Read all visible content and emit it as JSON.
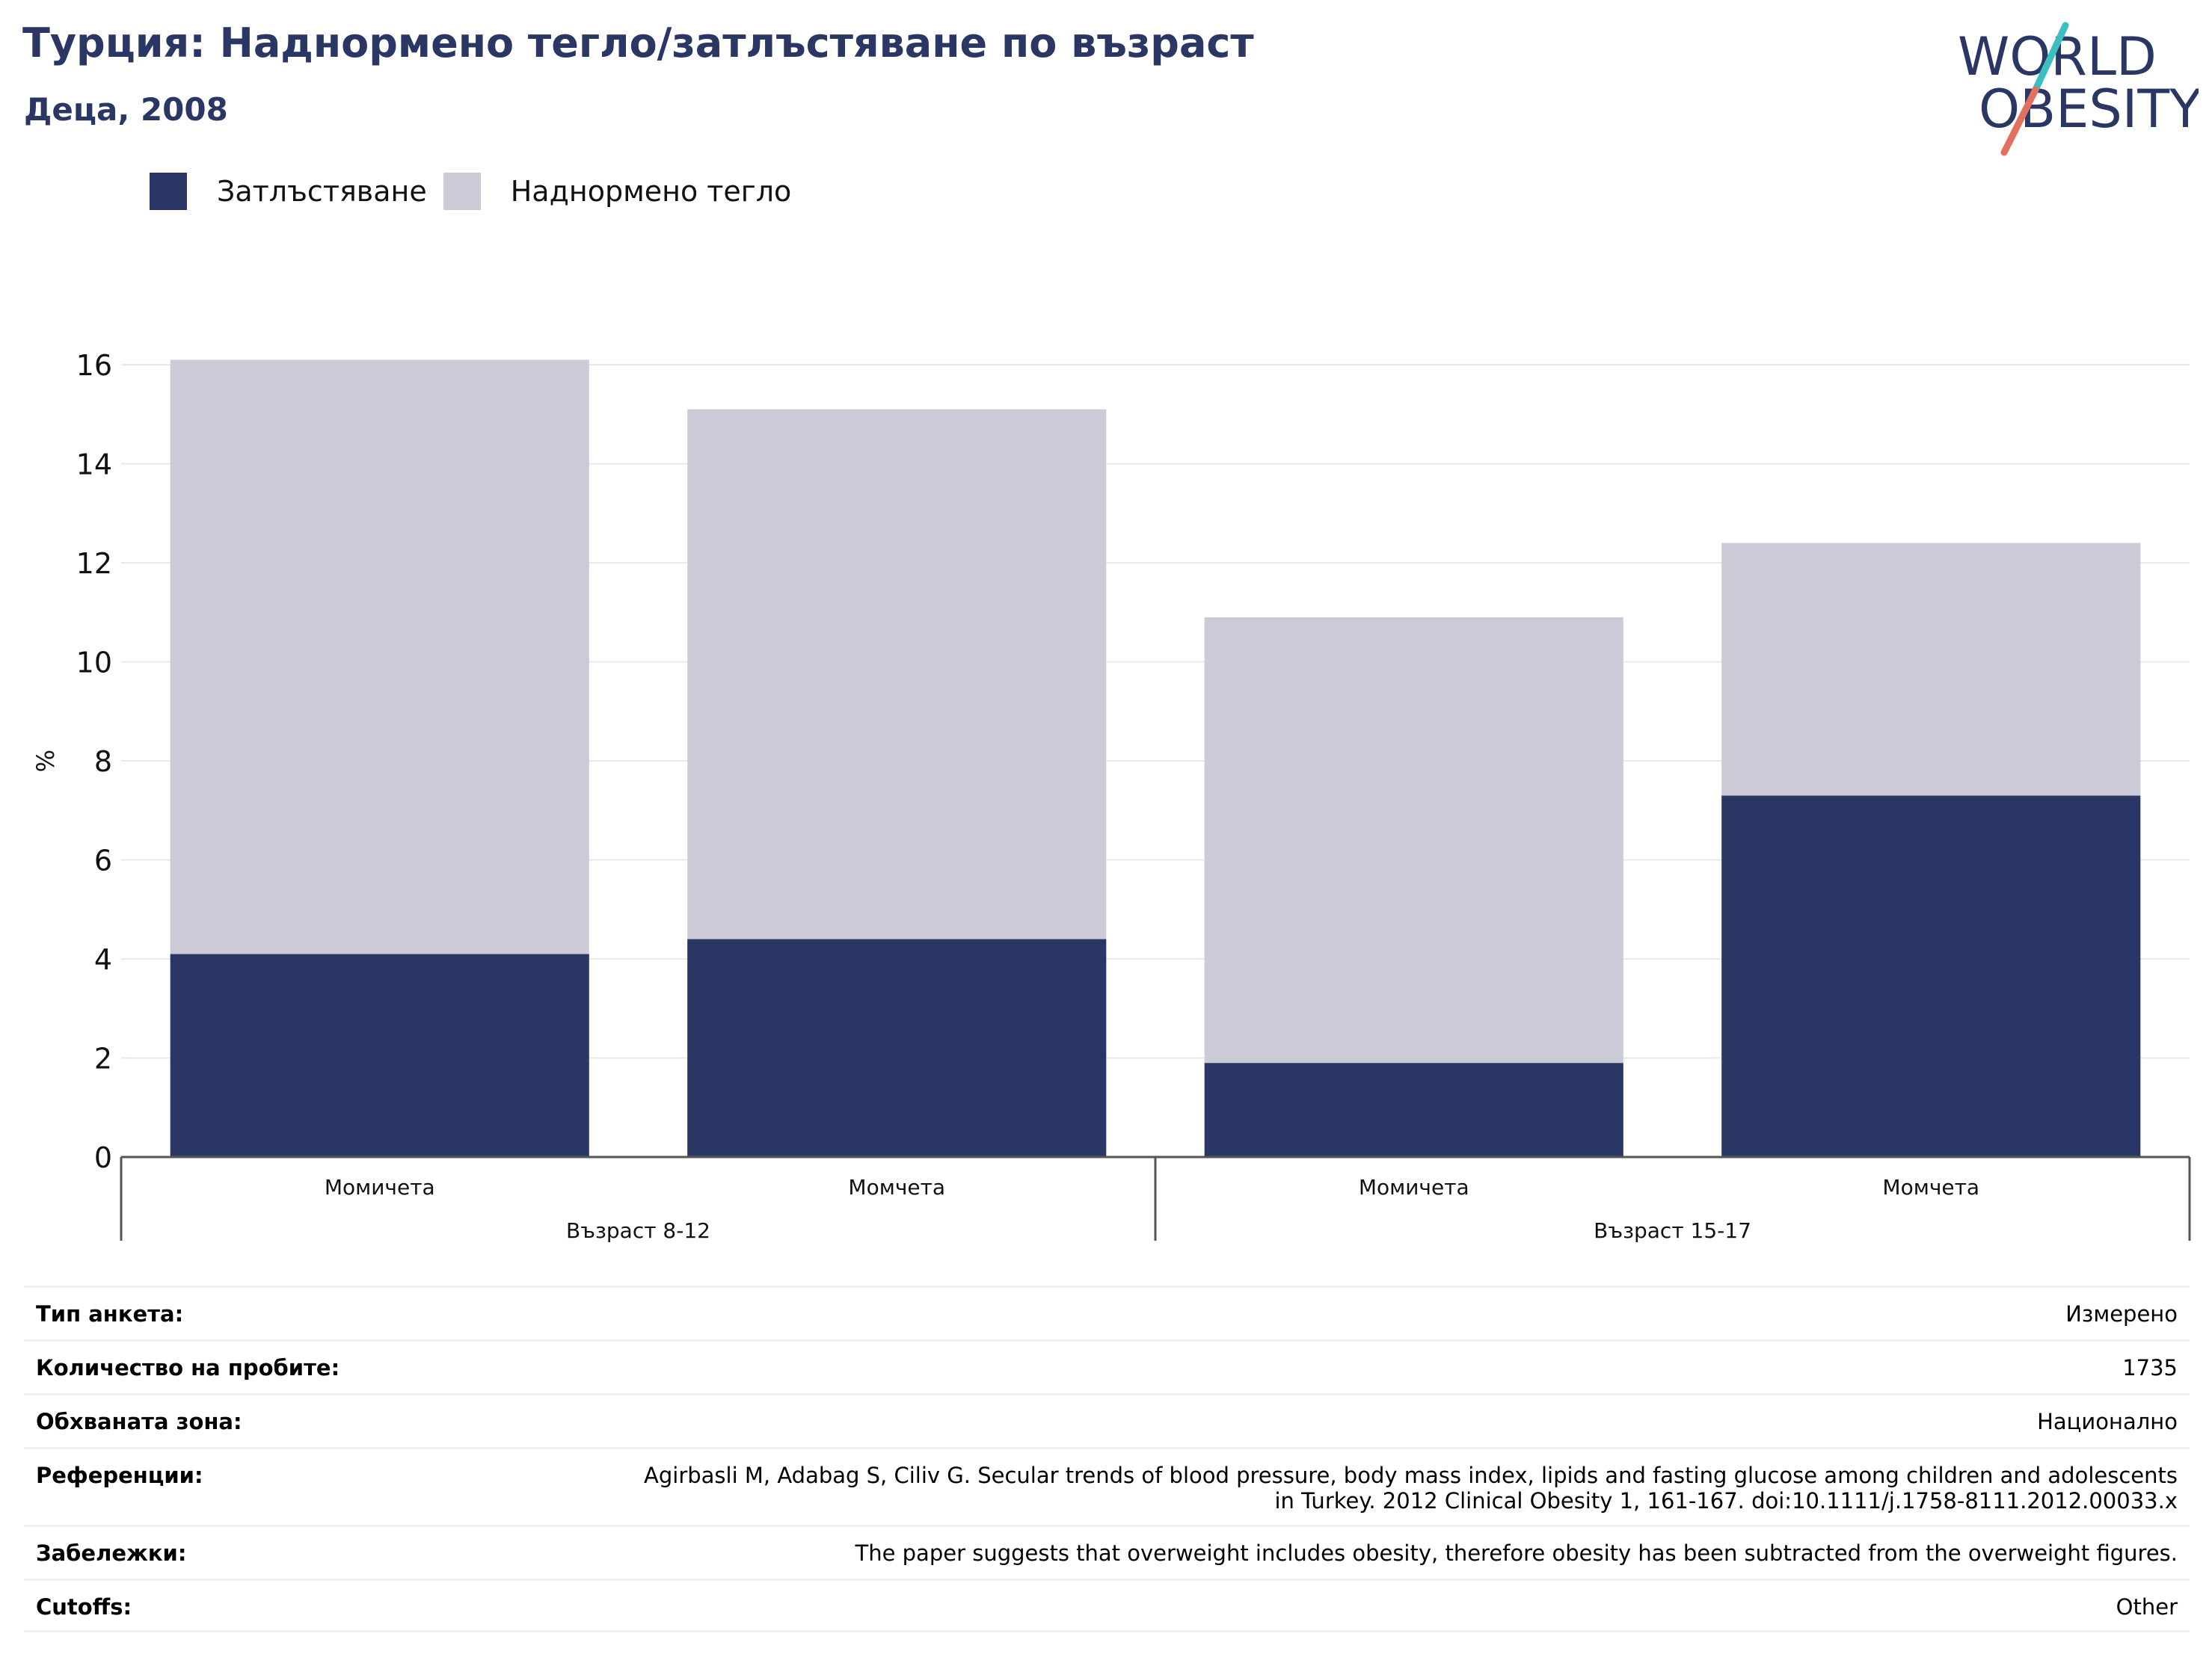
{
  "title": "Турция: Наднормено тегло/затлъстяване по възраст",
  "subtitle": "Деца, 2008",
  "logo": {
    "line1": "WORLD",
    "line2": "OBESITY"
  },
  "colors": {
    "obesity": "#2a3663",
    "overweight": "#cacbd7",
    "title": "#2a3663",
    "logo_teal": "#3bbfc2",
    "logo_coral": "#e3705e"
  },
  "legend": [
    {
      "label": "Затлъстяване",
      "color": "#2a3663"
    },
    {
      "label": "Наднормено тегло",
      "color": "#cacbd7"
    }
  ],
  "chart_data": {
    "type": "bar",
    "stacked": true,
    "ylabel": "%",
    "ylim": [
      0,
      16
    ],
    "yticks": [
      0,
      2,
      4,
      6,
      8,
      10,
      12,
      14,
      16
    ],
    "grid": true,
    "legend_position": "top-left",
    "categories": [
      "Момичета",
      "Момчета",
      "Момичета",
      "Момчета"
    ],
    "groups": [
      {
        "label": "Възраст 8-12",
        "span": [
          0,
          1
        ]
      },
      {
        "label": "Възраст 15-17",
        "span": [
          2,
          3
        ]
      }
    ],
    "series": [
      {
        "name": "Затлъстяване",
        "values": [
          4.1,
          4.4,
          1.9,
          7.3
        ]
      },
      {
        "name": "Наднормено тегло",
        "values": [
          12.0,
          10.7,
          9.0,
          5.1
        ]
      }
    ]
  },
  "info": [
    {
      "key": "Тип анкета:",
      "value": "Измерено"
    },
    {
      "key": "Количество на пробите:",
      "value": "1735"
    },
    {
      "key": "Обхваната зона:",
      "value": "Национално"
    },
    {
      "key": "Референции:",
      "value": [
        "Agirbasli M, Adabag S, Ciliv G. Secular trends of blood pressure, body mass index, lipids and fasting glucose among children and adolescents",
        "in Turkey. 2012 Clinical Obesity 1, 161-167. doi:10.1111/j.1758-8111.2012.00033.x"
      ]
    },
    {
      "key": "Забележки:",
      "value": "The paper suggests that overweight includes obesity, therefore obesity has been subtracted from the overweight figures."
    },
    {
      "key": "Cutoffs:",
      "value": "Other"
    }
  ]
}
